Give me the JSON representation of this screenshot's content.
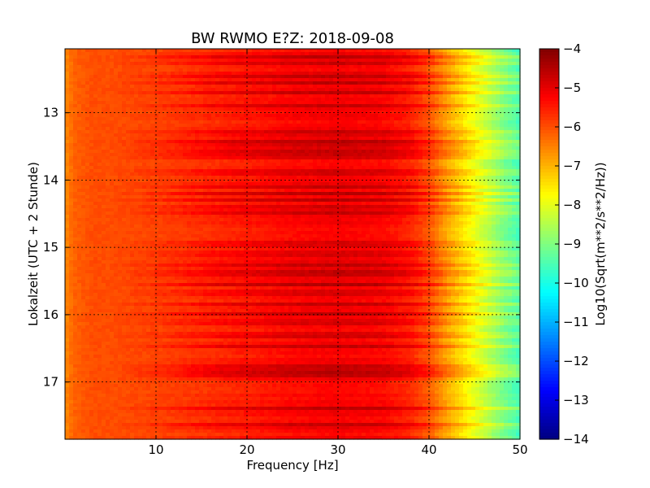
{
  "chart_data": {
    "type": "heatmap",
    "title": "BW RWMO E?Z: 2018-09-08",
    "xlabel": "Frequency [Hz]",
    "ylabel": "Lokalzeit (UTC + 2 Stunde)",
    "xlim": [
      0,
      50
    ],
    "ylim": [
      17.85,
      12.05
    ],
    "x_ticks": [
      10,
      20,
      30,
      40,
      50
    ],
    "x_tick_labels": [
      "10",
      "20",
      "30",
      "40",
      "50"
    ],
    "y_ticks": [
      13,
      14,
      15,
      16,
      17
    ],
    "y_tick_labels": [
      "13",
      "14",
      "15",
      "16",
      "17"
    ],
    "grid": true,
    "colormap": "jet",
    "colorbar": {
      "label": "Log10(Sqrt(m**2/s**2/Hz))",
      "range": [
        -14,
        -4
      ],
      "ticks": [
        -4,
        -5,
        -6,
        -7,
        -8,
        -9,
        -10,
        -11,
        -12,
        -13,
        -14
      ],
      "tick_labels": [
        "−4",
        "−5",
        "−6",
        "−7",
        "−8",
        "−9",
        "−10",
        "−11",
        "−12",
        "−13",
        "−14"
      ]
    },
    "spectral_profile": {
      "frequency_hz": [
        0,
        1,
        3,
        5,
        10,
        15,
        20,
        25,
        30,
        35,
        38,
        40,
        42,
        44,
        46,
        48,
        50
      ],
      "typical_log10_amplitude": [
        -6.6,
        -6.2,
        -6.0,
        -6.0,
        -5.9,
        -5.7,
        -5.5,
        -5.3,
        -5.2,
        -5.3,
        -5.6,
        -6.1,
        -6.9,
        -7.6,
        -8.3,
        -9.0,
        -9.6
      ]
    },
    "high_energy_hours": [
      12.17,
      12.25,
      12.45,
      12.55,
      12.7,
      12.9,
      13.3,
      13.42,
      13.5,
      13.58,
      13.65,
      13.88,
      14.1,
      14.2,
      14.3,
      14.42,
      14.5,
      14.95,
      15.1,
      15.25,
      15.35,
      15.42,
      15.55,
      15.68,
      15.85,
      16.0,
      16.12,
      16.3,
      16.47,
      16.78,
      16.85,
      16.92,
      17.4,
      17.65
    ]
  }
}
